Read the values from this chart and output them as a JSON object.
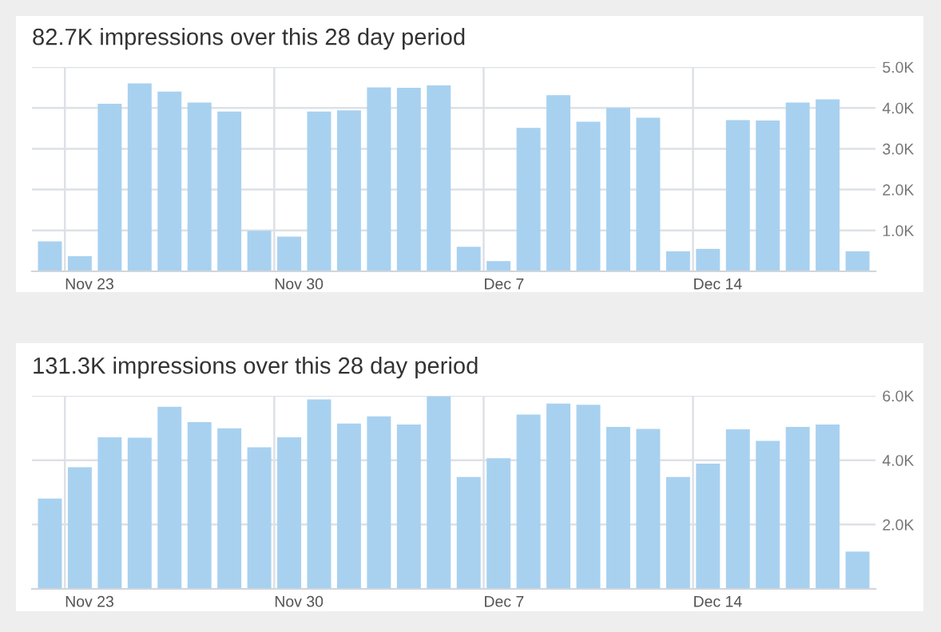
{
  "chart_data": [
    {
      "type": "bar",
      "title": "82.7K impressions over this 28 day period",
      "categories": [
        null,
        "Nov 23",
        null,
        null,
        null,
        null,
        null,
        null,
        "Nov 30",
        null,
        null,
        null,
        null,
        null,
        null,
        "Dec 7",
        null,
        null,
        null,
        null,
        null,
        null,
        "Dec 14",
        null,
        null,
        null,
        null,
        null
      ],
      "values": [
        0.73,
        0.37,
        4.1,
        4.6,
        4.4,
        4.13,
        3.91,
        0.99,
        0.85,
        3.91,
        3.94,
        4.5,
        4.49,
        4.55,
        0.6,
        0.25,
        3.51,
        4.31,
        3.66,
        4.0,
        3.76,
        0.49,
        0.55,
        3.7,
        3.69,
        4.13,
        4.21,
        0.49
      ],
      "color": "#a8d1f0",
      "ylim": [
        0,
        5.0
      ],
      "yticks": [
        {
          "value": 1,
          "label": "1.0K"
        },
        {
          "value": 2,
          "label": "2.0K"
        },
        {
          "value": 3,
          "label": "3.0K"
        },
        {
          "value": 4,
          "label": "4.0K"
        },
        {
          "value": 5,
          "label": "5.0K"
        }
      ],
      "grid": true
    },
    {
      "type": "bar",
      "title": "131.3K impressions over this 28 day period",
      "categories": [
        null,
        "Nov 23",
        null,
        null,
        null,
        null,
        null,
        null,
        "Nov 30",
        null,
        null,
        null,
        null,
        null,
        null,
        "Dec 7",
        null,
        null,
        null,
        null,
        null,
        null,
        "Dec 14",
        null,
        null,
        null,
        null,
        null
      ],
      "values": [
        2.81,
        3.78,
        4.71,
        4.7,
        5.66,
        5.18,
        4.99,
        4.4,
        4.71,
        5.89,
        5.14,
        5.36,
        5.11,
        5.98,
        3.48,
        4.06,
        5.42,
        5.76,
        5.72,
        5.03,
        4.97,
        3.48,
        3.89,
        4.96,
        4.6,
        5.03,
        5.11,
        1.16
      ],
      "color": "#a8d1f0",
      "ylim": [
        0,
        6.0
      ],
      "yticks": [
        {
          "value": 2,
          "label": "2.0K"
        },
        {
          "value": 4,
          "label": "4.0K"
        },
        {
          "value": 6,
          "label": "6.0K"
        }
      ],
      "grid": true
    }
  ]
}
